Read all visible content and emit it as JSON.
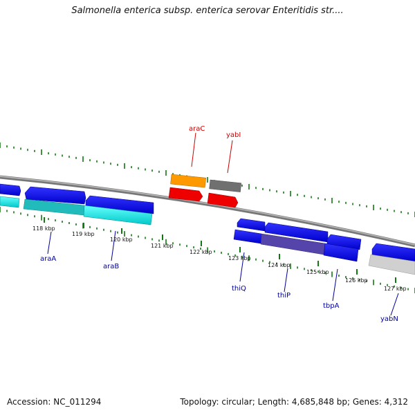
{
  "title": "Salmonella enterica subsp. enterica serovar Enteritidis str....",
  "footer": {
    "accession": "Accession: NC_011294",
    "info": "Topology: circular; Length: 4,685,848 bp; Genes: 4,312"
  },
  "colors": {
    "backbone": "#888888",
    "forward_gene": "#0000dd",
    "cyan_gene": "#00dddd",
    "orange_gene": "#ff9900",
    "gray_gene": "#777777",
    "red_gene": "#ee0000",
    "light_gray_gene": "#cccccc",
    "purple_overlap": "#5544aa",
    "tick_color": "#117711",
    "label_forward": "#000099",
    "label_reverse": "#cc0000"
  },
  "ticks": [
    "118 kbp",
    "119 kbp",
    "120 kbp",
    "121 kbp",
    "122 kbp",
    "123 kbp",
    "124 kbp",
    "125 kbp",
    "126 kbp",
    "127 kbp"
  ],
  "gene_labels": [
    {
      "name": "araC",
      "strand": "reverse"
    },
    {
      "name": "yabI",
      "strand": "reverse"
    },
    {
      "name": "araA",
      "strand": "forward"
    },
    {
      "name": "araB",
      "strand": "forward"
    },
    {
      "name": "thiQ",
      "strand": "forward"
    },
    {
      "name": "thiP",
      "strand": "forward"
    },
    {
      "name": "tbpA",
      "strand": "forward"
    },
    {
      "name": "yabN",
      "strand": "forward"
    }
  ]
}
